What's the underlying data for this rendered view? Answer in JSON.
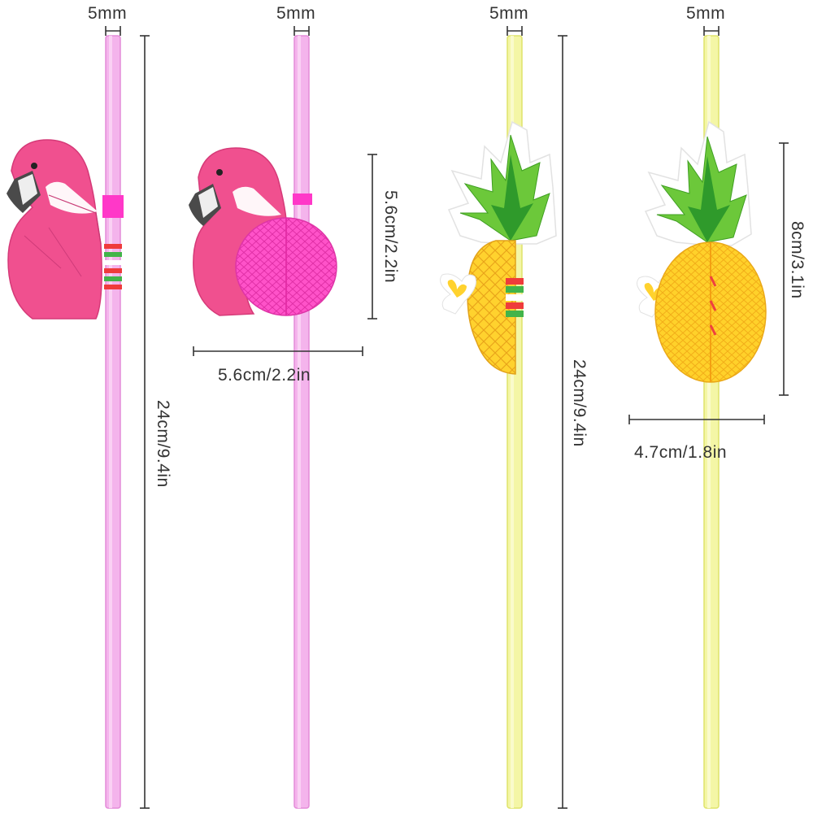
{
  "straws": [
    {
      "name": "flamingo-straw",
      "color": "#f2a8e8",
      "stroke": "#e48bd8"
    },
    {
      "name": "flamingo-honeycomb-straw",
      "color": "#f2a8e8",
      "stroke": "#e48bd8"
    },
    {
      "name": "pineapple-straw",
      "color": "#f3f59a",
      "stroke": "#dfe36a"
    },
    {
      "name": "pineapple-honeycomb-straw",
      "color": "#f3f59a",
      "stroke": "#dfe36a"
    }
  ],
  "labels": {
    "diameter_1": "5mm",
    "diameter_2": "5mm",
    "diameter_3": "5mm",
    "diameter_4": "5mm",
    "length_1": "24cm/9.4in",
    "length_3": "24cm/9.4in",
    "flamingo_height": "5.6cm/2.2in",
    "flamingo_width": "5.6cm/2.2in",
    "pineapple_height": "8cm/3.1in",
    "pineapple_width": "4.7cm/1.8in"
  },
  "colors": {
    "flamingo_pink": "#f0508f",
    "honeycomb_pink": "#ff4fc8",
    "pineapple_yellow": "#ffd62e",
    "leaf_green": "#6cc83a",
    "dimension_line": "#333333"
  }
}
